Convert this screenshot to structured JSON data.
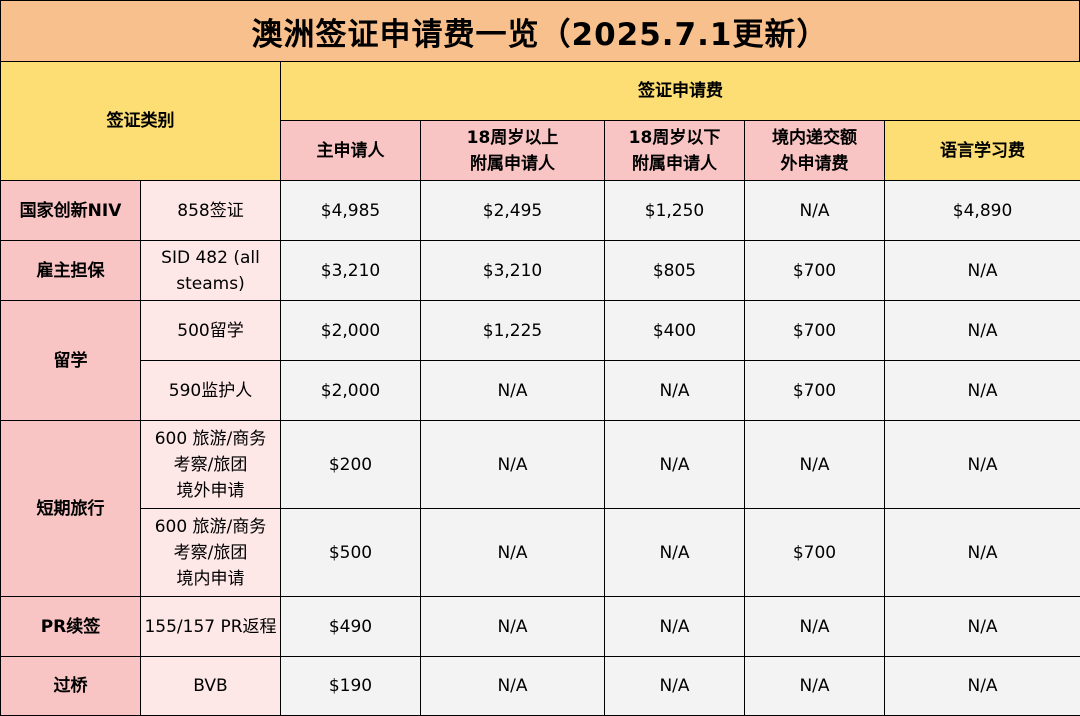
{
  "title": "澳洲签证申请费一览（2025.7.1更新）",
  "header": {
    "category_col": "签证类别",
    "fee_group": "签证申请费",
    "columns": [
      "主申请人",
      "18周岁以上\n附属申请人",
      "18周岁以下\n附属申请人",
      "境内递交额\n外申请费",
      "语言学习费"
    ]
  },
  "rows": [
    {
      "category": "国家创新NIV",
      "visa": "858签证",
      "values": [
        "$4,985",
        "$2,495",
        "$1,250",
        "N/A",
        "$4,890"
      ]
    },
    {
      "category": "雇主担保",
      "visa": "SID 482 (all\nsteams)",
      "values": [
        "$3,210",
        "$3,210",
        "$805",
        "$700",
        "N/A"
      ]
    },
    {
      "category": "留学",
      "visa": "500留学",
      "values": [
        "$2,000",
        "$1,225",
        "$400",
        "$700",
        "N/A"
      ]
    },
    {
      "category": "",
      "visa": "590监护人",
      "values": [
        "$2,000",
        "N/A",
        "N/A",
        "$700",
        "N/A"
      ]
    },
    {
      "category": "短期旅行",
      "visa": "600 旅游/商务\n考察/旅团\n境外申请",
      "values": [
        "$200",
        "N/A",
        "N/A",
        "N/A",
        "N/A"
      ]
    },
    {
      "category": "",
      "visa": "600 旅游/商务\n考察/旅团\n境内申请",
      "values": [
        "$500",
        "N/A",
        "N/A",
        "$700",
        "N/A"
      ]
    },
    {
      "category": "PR续签",
      "visa": "155/157 PR返程",
      "values": [
        "$490",
        "N/A",
        "N/A",
        "N/A",
        "N/A"
      ]
    },
    {
      "category": "过桥",
      "visa": "BVB",
      "values": [
        "$190",
        "N/A",
        "N/A",
        "N/A",
        "N/A"
      ]
    }
  ]
}
